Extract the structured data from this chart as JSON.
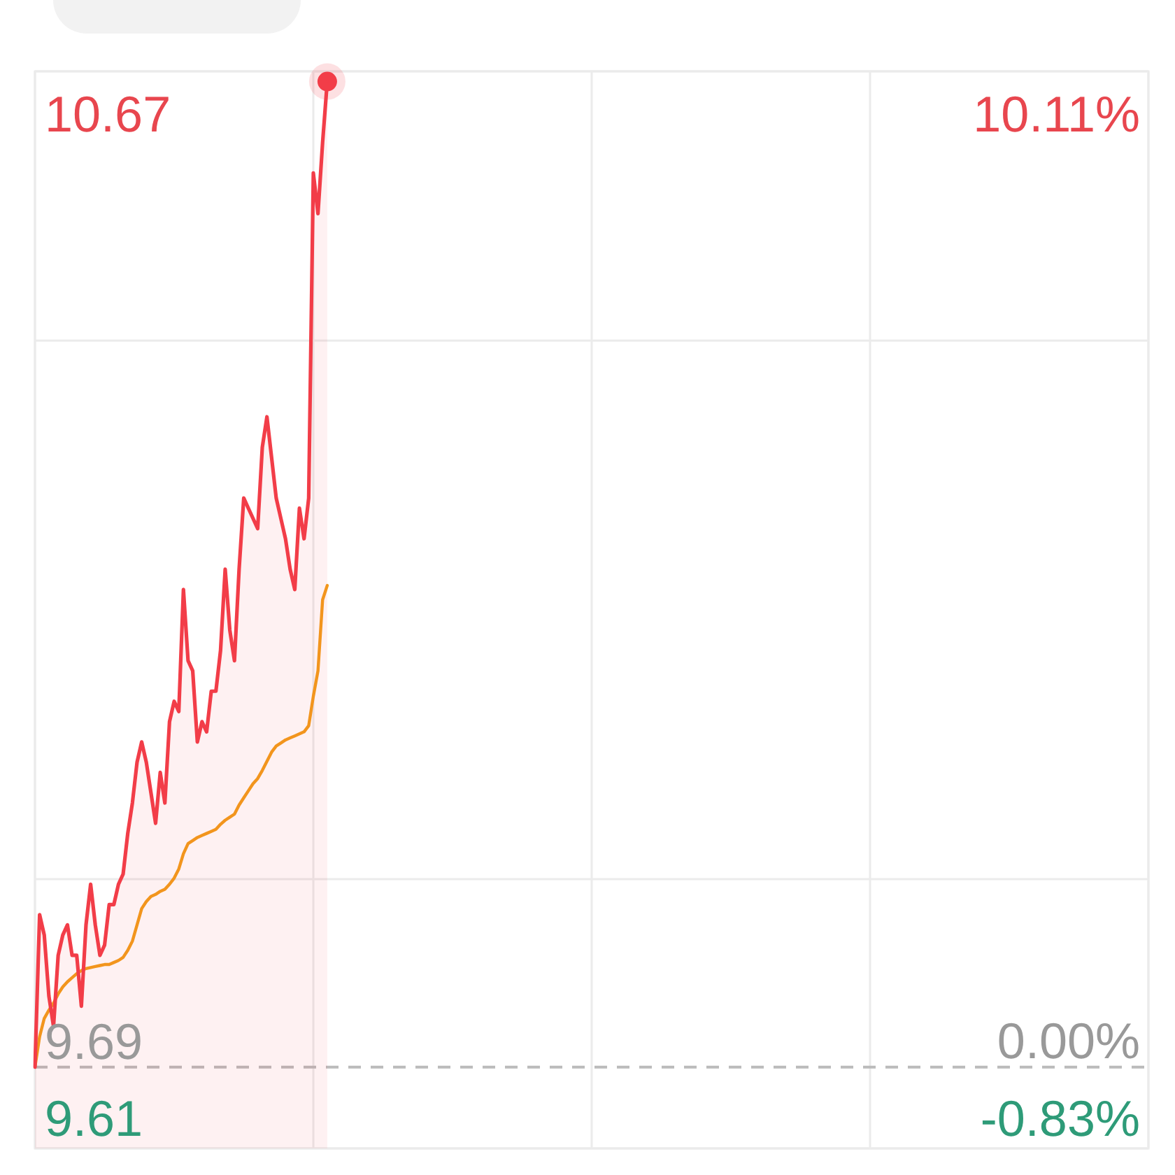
{
  "chart_data": {
    "type": "area",
    "categories": [
      null,
      null,
      null,
      null,
      null,
      null,
      null,
      null,
      null,
      null,
      null,
      null,
      null,
      null,
      null,
      null,
      null,
      null,
      null,
      null,
      null,
      null,
      null,
      null,
      null,
      null,
      null,
      null,
      null,
      null,
      null,
      null,
      null,
      null,
      null,
      null,
      null,
      null,
      null,
      null,
      null,
      null,
      null,
      null,
      null,
      null,
      null,
      null,
      null,
      null,
      null,
      null,
      null,
      null,
      null,
      null,
      null,
      null,
      null,
      null,
      null,
      null,
      null,
      null,
      null,
      null,
      null,
      null,
      null,
      null,
      null,
      null,
      null,
      null,
      null,
      null,
      null,
      null,
      null,
      null,
      null,
      null,
      null,
      null,
      null,
      null,
      null,
      null,
      null,
      null,
      null,
      null,
      null,
      null,
      null,
      null,
      null,
      null,
      null,
      null,
      null,
      null,
      null,
      null,
      null,
      null,
      null,
      null,
      null,
      null,
      null,
      null,
      null,
      null,
      null,
      null,
      null,
      null,
      null,
      null,
      null,
      null,
      null,
      null,
      null,
      null,
      null,
      null,
      null,
      null,
      null,
      null,
      null,
      null,
      null,
      null,
      null,
      null,
      null,
      null,
      null,
      null,
      null,
      null,
      null,
      null,
      null,
      null,
      null,
      null,
      null,
      null,
      null,
      null,
      null,
      null,
      null,
      null,
      null,
      null,
      null,
      null,
      null,
      null,
      null,
      null,
      null,
      null,
      null,
      null,
      null,
      null,
      null,
      null,
      null,
      null,
      null,
      null,
      null,
      null,
      null,
      null,
      null,
      null,
      null,
      null,
      null,
      null,
      null,
      null,
      null,
      null,
      null,
      null,
      null,
      null,
      null,
      null,
      null,
      null,
      null,
      null,
      null,
      null,
      null,
      null,
      null,
      null,
      null,
      null,
      null,
      null,
      null,
      null,
      null,
      null,
      null,
      null,
      null,
      null,
      null,
      null,
      null,
      null,
      null,
      null,
      null,
      null,
      null,
      null,
      null,
      null,
      null,
      null,
      null,
      null,
      null,
      null,
      null,
      null,
      null
    ],
    "series": [
      {
        "color": "#f23d48",
        "values": [
          9.69,
          9.84,
          9.82,
          9.76,
          9.73,
          9.8,
          9.82,
          9.83,
          9.8,
          9.8,
          9.75,
          9.83,
          9.87,
          9.83,
          9.8,
          9.81,
          9.85,
          9.85,
          9.87,
          9.88,
          9.92,
          9.95,
          9.99,
          10.01,
          9.99,
          9.96,
          9.93,
          9.98,
          9.95,
          10.03,
          10.05,
          10.04,
          10.16,
          10.09,
          10.08,
          10.01,
          10.03,
          10.02,
          10.06,
          10.06,
          10.1,
          10.18,
          10.12,
          10.09,
          10.18,
          10.25,
          10.24,
          10.23,
          10.22,
          10.3,
          10.33,
          10.29,
          10.25,
          10.23,
          10.21,
          10.18,
          10.16,
          10.24,
          10.21,
          10.25,
          10.57,
          10.53,
          10.6,
          10.66,
          null,
          null,
          null,
          null,
          null,
          null,
          null,
          null,
          null,
          null,
          null,
          null,
          null,
          null,
          null,
          null,
          null,
          null,
          null,
          null,
          null,
          null,
          null,
          null,
          null,
          null,
          null,
          null,
          null,
          null,
          null,
          null,
          null,
          null,
          null,
          null,
          null,
          null,
          null,
          null,
          null,
          null,
          null,
          null,
          null,
          null,
          null,
          null,
          null,
          null,
          null,
          null,
          null,
          null,
          null,
          null,
          null,
          null,
          null,
          null,
          null,
          null,
          null,
          null,
          null,
          null,
          null,
          null,
          null,
          null,
          null,
          null,
          null,
          null,
          null,
          null,
          null,
          null,
          null,
          null,
          null,
          null,
          null,
          null,
          null,
          null,
          null,
          null,
          null,
          null,
          null,
          null,
          null,
          null,
          null,
          null,
          null,
          null,
          null,
          null,
          null,
          null,
          null,
          null,
          null,
          null,
          null,
          null,
          null,
          null,
          null,
          null,
          null,
          null,
          null,
          null,
          null,
          null,
          null,
          null,
          null,
          null,
          null,
          null,
          null,
          null,
          null,
          null,
          null,
          null,
          null,
          null,
          null,
          null,
          null,
          null,
          null,
          null,
          null,
          null,
          null,
          null,
          null,
          null,
          null,
          null,
          null,
          null,
          null,
          null,
          null,
          null,
          null,
          null,
          null,
          null,
          null,
          null,
          null,
          null,
          null,
          null,
          null,
          null,
          null,
          null,
          null,
          null,
          null,
          null,
          null,
          null,
          null,
          null,
          null,
          null,
          null
        ]
      },
      {
        "type": "line",
        "color": "#f39c1a",
        "values": [
          9.69,
          9.72,
          9.738,
          9.746,
          9.753,
          9.762,
          9.769,
          9.774,
          9.778,
          9.782,
          9.785,
          9.787,
          9.788,
          9.789,
          9.79,
          9.791,
          9.791,
          9.793,
          9.795,
          9.798,
          9.805,
          9.814,
          9.83,
          9.846,
          9.853,
          9.858,
          9.86,
          9.863,
          9.865,
          9.87,
          9.876,
          9.885,
          9.9,
          9.91,
          9.913,
          9.916,
          9.918,
          9.92,
          9.922,
          9.924,
          9.929,
          9.933,
          9.936,
          9.939,
          9.948,
          9.955,
          9.962,
          9.969,
          9.974,
          9.982,
          9.991,
          10.0,
          10.006,
          10.009,
          10.012,
          10.014,
          10.016,
          10.018,
          10.02,
          10.026,
          10.055,
          10.08,
          10.15,
          10.164,
          null,
          null,
          null,
          null,
          null,
          null,
          null,
          null,
          null,
          null,
          null,
          null,
          null,
          null,
          null,
          null,
          null,
          null,
          null,
          null,
          null,
          null,
          null,
          null,
          null,
          null,
          null,
          null,
          null,
          null,
          null,
          null,
          null,
          null,
          null,
          null,
          null,
          null,
          null,
          null,
          null,
          null,
          null,
          null,
          null,
          null,
          null,
          null,
          null,
          null,
          null,
          null,
          null,
          null,
          null,
          null,
          null,
          null,
          null,
          null,
          null,
          null,
          null,
          null,
          null,
          null,
          null,
          null,
          null,
          null,
          null,
          null,
          null,
          null,
          null,
          null,
          null,
          null,
          null,
          null,
          null,
          null,
          null,
          null,
          null,
          null,
          null,
          null,
          null,
          null,
          null,
          null,
          null,
          null,
          null,
          null,
          null,
          null,
          null,
          null,
          null,
          null,
          null,
          null,
          null,
          null,
          null,
          null,
          null,
          null,
          null,
          null,
          null,
          null,
          null,
          null,
          null,
          null,
          null,
          null,
          null,
          null,
          null,
          null,
          null,
          null,
          null,
          null,
          null,
          null,
          null,
          null,
          null,
          null,
          null,
          null,
          null,
          null,
          null,
          null,
          null,
          null,
          null,
          null,
          null,
          null,
          null,
          null,
          null,
          null,
          null,
          null,
          null,
          null,
          null,
          null,
          null,
          null,
          null,
          null,
          null,
          null,
          null,
          null,
          null,
          null,
          null,
          null,
          null,
          null,
          null,
          null,
          null,
          null,
          null,
          null,
          null
        ]
      },
      {
        "type": "scatter",
        "color": "#f23d48",
        "marker": "circle",
        "values": [
          null,
          null,
          null,
          null,
          null,
          null,
          null,
          null,
          null,
          null,
          null,
          null,
          null,
          null,
          null,
          null,
          null,
          null,
          null,
          null,
          null,
          null,
          null,
          null,
          null,
          null,
          null,
          null,
          null,
          null,
          null,
          null,
          null,
          null,
          null,
          null,
          null,
          null,
          null,
          null,
          null,
          null,
          null,
          null,
          null,
          null,
          null,
          null,
          null,
          null,
          null,
          null,
          null,
          null,
          null,
          null,
          null,
          null,
          null,
          null,
          null,
          null,
          null,
          10.66,
          null,
          null,
          null,
          null,
          null,
          null,
          null,
          null,
          null,
          null,
          null,
          null,
          null,
          null,
          null,
          null,
          null,
          null,
          null,
          null,
          null,
          null,
          null,
          null,
          null,
          null,
          null,
          null,
          null,
          null,
          null,
          null,
          null,
          null,
          null,
          null,
          null,
          null,
          null,
          null,
          null,
          null,
          null,
          null,
          null,
          null,
          null,
          null,
          null,
          null,
          null,
          null,
          null,
          null,
          null,
          null,
          null,
          null,
          null,
          null,
          null,
          null,
          null,
          null,
          null,
          null,
          null,
          null,
          null,
          null,
          null,
          null,
          null,
          null,
          null,
          null,
          null,
          null,
          null,
          null,
          null,
          null,
          null,
          null,
          null,
          null,
          null,
          null,
          null,
          null,
          null,
          null,
          null,
          null,
          null,
          null,
          null,
          null,
          null,
          null,
          null,
          null,
          null,
          null,
          null,
          null,
          null,
          null,
          null,
          null,
          null,
          null,
          null,
          null,
          null,
          null,
          null,
          null,
          null,
          null,
          null,
          null,
          null,
          null,
          null,
          null,
          null,
          null,
          null,
          null,
          null,
          null,
          null,
          null,
          null,
          null,
          null,
          null,
          null,
          null,
          null,
          null,
          null,
          null,
          null,
          null,
          null,
          null,
          null,
          null,
          null,
          null,
          null,
          null,
          null,
          null,
          null,
          null,
          null,
          null,
          null,
          null,
          null,
          null,
          null,
          null,
          null,
          null,
          null,
          null,
          null,
          null,
          null,
          null,
          null,
          null,
          null
        ]
      }
    ],
    "ylim": [
      9.61,
      10.67
    ],
    "yticks": [
      10.67,
      {
        "value": 10.405,
        "label": null
      },
      {
        "value": 9.875,
        "label": null
      },
      9.69,
      9.61
    ],
    "y2lim": [
      -0.83,
      10.11
    ],
    "y2ticks": [
      {
        "value": 10.11,
        "label": "10.11%"
      },
      {
        "value": 0,
        "label": "0.00%"
      },
      {
        "value": -0.83,
        "label": "-0.83%"
      }
    ],
    "ref_lines": [
      {
        "axis": "y",
        "value": 9.69,
        "color": "#bbbbbb",
        "line_style": "dashed"
      }
    ],
    "grid": true
  }
}
